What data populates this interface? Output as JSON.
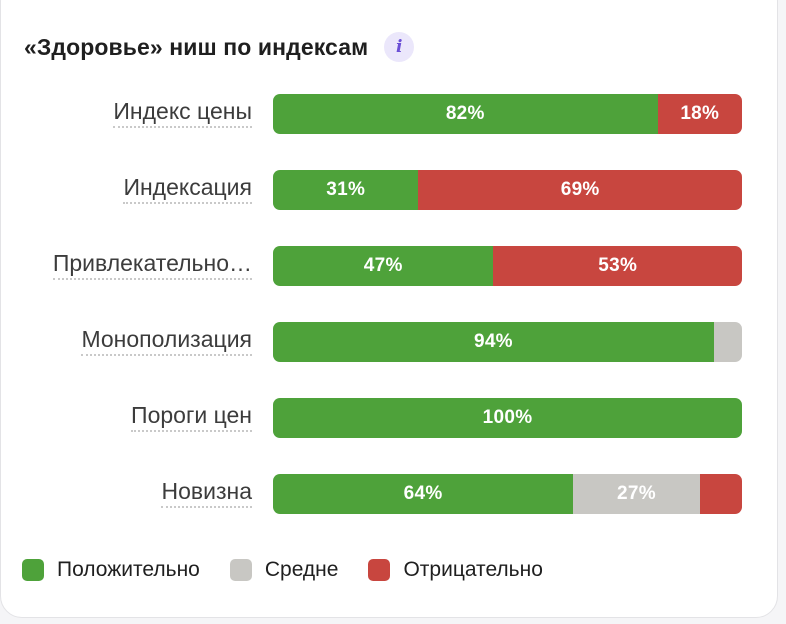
{
  "chart_data": {
    "type": "bar",
    "stacked": true,
    "orientation": "horizontal",
    "title": "«Здоровье» ниш по индексам",
    "categories": [
      "Индекс цены",
      "Индексация",
      "Привлекательно…",
      "Монополизация",
      "Пороги цен",
      "Новизна"
    ],
    "series": [
      {
        "name": "Положительно",
        "color": "#4ea23a",
        "values": [
          82,
          31,
          47,
          94,
          100,
          64
        ],
        "labels": [
          "82%",
          "31%",
          "47%",
          "94%",
          "100%",
          "64%"
        ]
      },
      {
        "name": "Средне",
        "color": "#c8c7c3",
        "values": [
          0,
          0,
          0,
          6,
          0,
          27
        ],
        "labels": [
          "",
          "",
          "",
          "",
          "",
          "27%"
        ]
      },
      {
        "name": "Отрицательно",
        "color": "#c8463f",
        "values": [
          18,
          69,
          53,
          0,
          0,
          9
        ],
        "labels": [
          "18%",
          "69%",
          "53%",
          "",
          "",
          ""
        ]
      }
    ],
    "xlim": [
      0,
      100
    ],
    "legend": "bottom-left"
  },
  "info_icon_glyph": "i"
}
